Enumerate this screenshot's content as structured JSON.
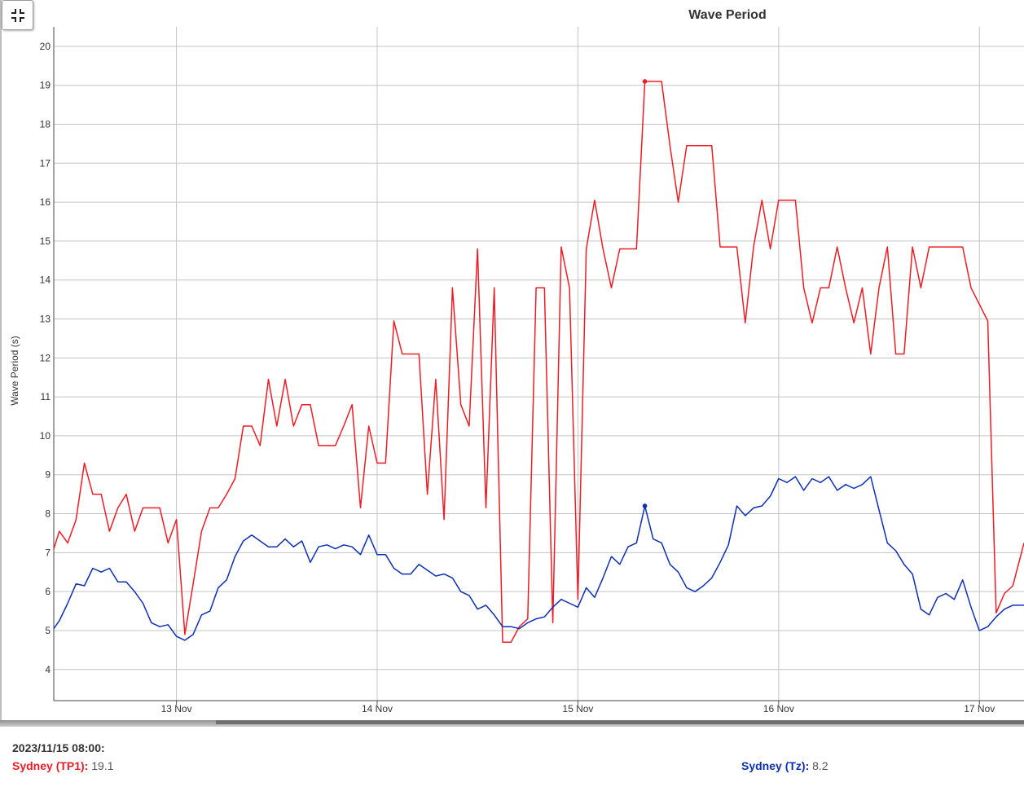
{
  "chart_data": {
    "type": "line",
    "title": "Wave Period",
    "ylabel": "Wave Period (s)",
    "xlabel": "",
    "ylim": [
      3.2,
      20.5
    ],
    "yticks": [
      4,
      5,
      6,
      7,
      8,
      9,
      10,
      11,
      12,
      13,
      14,
      15,
      16,
      17,
      18,
      19,
      20
    ],
    "xlim": [
      "2023-11-12 09:20",
      "2023-11-17 05:20"
    ],
    "xticks": [
      {
        "x": "2023-11-13 00:00",
        "label": "13 Nov"
      },
      {
        "x": "2023-11-14 00:00",
        "label": "14 Nov"
      },
      {
        "x": "2023-11-15 00:00",
        "label": "15 Nov"
      },
      {
        "x": "2023-11-16 00:00",
        "label": "16 Nov"
      },
      {
        "x": "2023-11-17 00:00",
        "label": "17 Nov"
      }
    ],
    "grid": true,
    "series": [
      {
        "name": "Sydney (TP1)",
        "color": "#ee1c25",
        "points": [
          [
            "2023-11-12 09:20",
            7.1
          ],
          [
            "2023-11-12 10:00",
            7.55
          ],
          [
            "2023-11-12 11:00",
            7.25
          ],
          [
            "2023-11-12 12:00",
            7.85
          ],
          [
            "2023-11-12 13:00",
            9.3
          ],
          [
            "2023-11-12 14:00",
            8.5
          ],
          [
            "2023-11-12 15:00",
            8.5
          ],
          [
            "2023-11-12 16:00",
            7.55
          ],
          [
            "2023-11-12 17:00",
            8.15
          ],
          [
            "2023-11-12 18:00",
            8.5
          ],
          [
            "2023-11-12 19:00",
            7.55
          ],
          [
            "2023-11-12 20:00",
            8.15
          ],
          [
            "2023-11-12 21:00",
            8.15
          ],
          [
            "2023-11-12 22:00",
            8.15
          ],
          [
            "2023-11-12 23:00",
            7.25
          ],
          [
            "2023-11-13 00:00",
            7.85
          ],
          [
            "2023-11-13 01:00",
            4.9
          ],
          [
            "2023-11-13 02:00",
            6.2
          ],
          [
            "2023-11-13 03:00",
            7.55
          ],
          [
            "2023-11-13 04:00",
            8.15
          ],
          [
            "2023-11-13 05:00",
            8.15
          ],
          [
            "2023-11-13 06:00",
            8.5
          ],
          [
            "2023-11-13 07:00",
            8.9
          ],
          [
            "2023-11-13 08:00",
            10.25
          ],
          [
            "2023-11-13 09:00",
            10.25
          ],
          [
            "2023-11-13 10:00",
            9.75
          ],
          [
            "2023-11-13 11:00",
            11.45
          ],
          [
            "2023-11-13 12:00",
            10.25
          ],
          [
            "2023-11-13 13:00",
            11.45
          ],
          [
            "2023-11-13 14:00",
            10.25
          ],
          [
            "2023-11-13 15:00",
            10.8
          ],
          [
            "2023-11-13 16:00",
            10.8
          ],
          [
            "2023-11-13 17:00",
            9.75
          ],
          [
            "2023-11-13 18:00",
            9.75
          ],
          [
            "2023-11-13 19:00",
            9.75
          ],
          [
            "2023-11-13 20:00",
            10.25
          ],
          [
            "2023-11-13 21:00",
            10.8
          ],
          [
            "2023-11-13 22:00",
            8.15
          ],
          [
            "2023-11-13 23:00",
            10.25
          ],
          [
            "2023-11-14 00:00",
            9.3
          ],
          [
            "2023-11-14 01:00",
            9.3
          ],
          [
            "2023-11-14 02:00",
            12.95
          ],
          [
            "2023-11-14 03:00",
            12.1
          ],
          [
            "2023-11-14 04:00",
            12.1
          ],
          [
            "2023-11-14 05:00",
            12.1
          ],
          [
            "2023-11-14 06:00",
            8.5
          ],
          [
            "2023-11-14 07:00",
            11.45
          ],
          [
            "2023-11-14 08:00",
            7.85
          ],
          [
            "2023-11-14 09:00",
            13.8
          ],
          [
            "2023-11-14 10:00",
            10.8
          ],
          [
            "2023-11-14 11:00",
            10.25
          ],
          [
            "2023-11-14 12:00",
            14.8
          ],
          [
            "2023-11-14 13:00",
            8.15
          ],
          [
            "2023-11-14 14:00",
            13.8
          ],
          [
            "2023-11-14 15:00",
            4.7
          ],
          [
            "2023-11-14 16:00",
            4.7
          ],
          [
            "2023-11-14 17:00",
            5.1
          ],
          [
            "2023-11-14 18:00",
            5.3
          ],
          [
            "2023-11-14 19:00",
            13.8
          ],
          [
            "2023-11-14 20:00",
            13.8
          ],
          [
            "2023-11-14 21:00",
            5.2
          ],
          [
            "2023-11-14 22:00",
            14.85
          ],
          [
            "2023-11-14 23:00",
            13.8
          ],
          [
            "2023-11-15 00:00",
            5.8
          ],
          [
            "2023-11-15 01:00",
            14.8
          ],
          [
            "2023-11-15 02:00",
            16.05
          ],
          [
            "2023-11-15 03:00",
            14.8
          ],
          [
            "2023-11-15 04:00",
            13.8
          ],
          [
            "2023-11-15 05:00",
            14.8
          ],
          [
            "2023-11-15 06:00",
            14.8
          ],
          [
            "2023-11-15 07:00",
            14.8
          ],
          [
            "2023-11-15 08:00",
            19.1
          ],
          [
            "2023-11-15 09:00",
            19.1
          ],
          [
            "2023-11-15 10:00",
            19.1
          ],
          [
            "2023-11-15 11:00",
            17.45
          ],
          [
            "2023-11-15 12:00",
            16.0
          ],
          [
            "2023-11-15 13:00",
            17.45
          ],
          [
            "2023-11-15 14:00",
            17.45
          ],
          [
            "2023-11-15 15:00",
            17.45
          ],
          [
            "2023-11-15 16:00",
            17.45
          ],
          [
            "2023-11-15 17:00",
            14.85
          ],
          [
            "2023-11-15 18:00",
            14.85
          ],
          [
            "2023-11-15 19:00",
            14.85
          ],
          [
            "2023-11-15 20:00",
            12.9
          ],
          [
            "2023-11-15 21:00",
            14.85
          ],
          [
            "2023-11-15 22:00",
            16.05
          ],
          [
            "2023-11-15 23:00",
            14.8
          ],
          [
            "2023-11-16 00:00",
            16.05
          ],
          [
            "2023-11-16 01:00",
            16.05
          ],
          [
            "2023-11-16 02:00",
            16.05
          ],
          [
            "2023-11-16 03:00",
            13.8
          ],
          [
            "2023-11-16 04:00",
            12.9
          ],
          [
            "2023-11-16 05:00",
            13.8
          ],
          [
            "2023-11-16 06:00",
            13.8
          ],
          [
            "2023-11-16 07:00",
            14.85
          ],
          [
            "2023-11-16 08:00",
            13.8
          ],
          [
            "2023-11-16 09:00",
            12.9
          ],
          [
            "2023-11-16 10:00",
            13.8
          ],
          [
            "2023-11-16 11:00",
            12.1
          ],
          [
            "2023-11-16 12:00",
            13.8
          ],
          [
            "2023-11-16 13:00",
            14.85
          ],
          [
            "2023-11-16 14:00",
            12.1
          ],
          [
            "2023-11-16 15:00",
            12.1
          ],
          [
            "2023-11-16 16:00",
            14.85
          ],
          [
            "2023-11-16 17:00",
            13.8
          ],
          [
            "2023-11-16 18:00",
            14.85
          ],
          [
            "2023-11-16 19:00",
            14.85
          ],
          [
            "2023-11-16 20:00",
            14.85
          ],
          [
            "2023-11-16 21:00",
            14.85
          ],
          [
            "2023-11-16 22:00",
            14.85
          ],
          [
            "2023-11-16 23:00",
            13.8
          ],
          [
            "2023-11-17 01:00",
            12.95
          ],
          [
            "2023-11-17 02:00",
            5.45
          ],
          [
            "2023-11-17 03:00",
            5.95
          ],
          [
            "2023-11-17 04:00",
            6.15
          ],
          [
            "2023-11-17 05:20",
            7.25
          ]
        ]
      },
      {
        "name": "Sydney (Tz)",
        "color": "#0d2fb4",
        "points": [
          [
            "2023-11-12 09:20",
            5.05
          ],
          [
            "2023-11-12 10:00",
            5.25
          ],
          [
            "2023-11-12 11:00",
            5.7
          ],
          [
            "2023-11-12 12:00",
            6.2
          ],
          [
            "2023-11-12 13:00",
            6.15
          ],
          [
            "2023-11-12 14:00",
            6.6
          ],
          [
            "2023-11-12 15:00",
            6.5
          ],
          [
            "2023-11-12 16:00",
            6.6
          ],
          [
            "2023-11-12 17:00",
            6.25
          ],
          [
            "2023-11-12 18:00",
            6.25
          ],
          [
            "2023-11-12 19:00",
            6.0
          ],
          [
            "2023-11-12 20:00",
            5.7
          ],
          [
            "2023-11-12 21:00",
            5.2
          ],
          [
            "2023-11-12 22:00",
            5.1
          ],
          [
            "2023-11-12 23:00",
            5.15
          ],
          [
            "2023-11-13 00:00",
            4.85
          ],
          [
            "2023-11-13 01:00",
            4.75
          ],
          [
            "2023-11-13 02:00",
            4.9
          ],
          [
            "2023-11-13 03:00",
            5.4
          ],
          [
            "2023-11-13 04:00",
            5.5
          ],
          [
            "2023-11-13 05:00",
            6.1
          ],
          [
            "2023-11-13 06:00",
            6.3
          ],
          [
            "2023-11-13 07:00",
            6.9
          ],
          [
            "2023-11-13 08:00",
            7.3
          ],
          [
            "2023-11-13 09:00",
            7.45
          ],
          [
            "2023-11-13 10:00",
            7.3
          ],
          [
            "2023-11-13 11:00",
            7.15
          ],
          [
            "2023-11-13 12:00",
            7.15
          ],
          [
            "2023-11-13 13:00",
            7.35
          ],
          [
            "2023-11-13 14:00",
            7.15
          ],
          [
            "2023-11-13 15:00",
            7.3
          ],
          [
            "2023-11-13 16:00",
            6.75
          ],
          [
            "2023-11-13 17:00",
            7.15
          ],
          [
            "2023-11-13 18:00",
            7.2
          ],
          [
            "2023-11-13 19:00",
            7.1
          ],
          [
            "2023-11-13 20:00",
            7.2
          ],
          [
            "2023-11-13 21:00",
            7.15
          ],
          [
            "2023-11-13 22:00",
            6.95
          ],
          [
            "2023-11-13 23:00",
            7.45
          ],
          [
            "2023-11-14 00:00",
            6.95
          ],
          [
            "2023-11-14 01:00",
            6.95
          ],
          [
            "2023-11-14 02:00",
            6.6
          ],
          [
            "2023-11-14 03:00",
            6.45
          ],
          [
            "2023-11-14 04:00",
            6.45
          ],
          [
            "2023-11-14 05:00",
            6.7
          ],
          [
            "2023-11-14 06:00",
            6.55
          ],
          [
            "2023-11-14 07:00",
            6.4
          ],
          [
            "2023-11-14 08:00",
            6.45
          ],
          [
            "2023-11-14 09:00",
            6.35
          ],
          [
            "2023-11-14 10:00",
            6.0
          ],
          [
            "2023-11-14 11:00",
            5.9
          ],
          [
            "2023-11-14 12:00",
            5.55
          ],
          [
            "2023-11-14 13:00",
            5.65
          ],
          [
            "2023-11-14 14:00",
            5.4
          ],
          [
            "2023-11-14 15:00",
            5.1
          ],
          [
            "2023-11-14 16:00",
            5.1
          ],
          [
            "2023-11-14 17:00",
            5.05
          ],
          [
            "2023-11-14 18:00",
            5.2
          ],
          [
            "2023-11-14 19:00",
            5.3
          ],
          [
            "2023-11-14 20:00",
            5.35
          ],
          [
            "2023-11-14 21:00",
            5.6
          ],
          [
            "2023-11-14 22:00",
            5.8
          ],
          [
            "2023-11-14 23:00",
            5.7
          ],
          [
            "2023-11-15 00:00",
            5.6
          ],
          [
            "2023-11-15 01:00",
            6.1
          ],
          [
            "2023-11-15 02:00",
            5.85
          ],
          [
            "2023-11-15 03:00",
            6.35
          ],
          [
            "2023-11-15 04:00",
            6.9
          ],
          [
            "2023-11-15 05:00",
            6.7
          ],
          [
            "2023-11-15 06:00",
            7.15
          ],
          [
            "2023-11-15 07:00",
            7.25
          ],
          [
            "2023-11-15 08:00",
            8.2
          ],
          [
            "2023-11-15 09:00",
            7.35
          ],
          [
            "2023-11-15 10:00",
            7.25
          ],
          [
            "2023-11-15 11:00",
            6.7
          ],
          [
            "2023-11-15 12:00",
            6.5
          ],
          [
            "2023-11-15 13:00",
            6.1
          ],
          [
            "2023-11-15 14:00",
            6.0
          ],
          [
            "2023-11-15 15:00",
            6.15
          ],
          [
            "2023-11-15 16:00",
            6.35
          ],
          [
            "2023-11-15 17:00",
            6.75
          ],
          [
            "2023-11-15 18:00",
            7.2
          ],
          [
            "2023-11-15 19:00",
            8.2
          ],
          [
            "2023-11-15 20:00",
            7.95
          ],
          [
            "2023-11-15 21:00",
            8.15
          ],
          [
            "2023-11-15 22:00",
            8.2
          ],
          [
            "2023-11-15 23:00",
            8.45
          ],
          [
            "2023-11-16 00:00",
            8.9
          ],
          [
            "2023-11-16 01:00",
            8.8
          ],
          [
            "2023-11-16 02:00",
            8.95
          ],
          [
            "2023-11-16 03:00",
            8.6
          ],
          [
            "2023-11-16 04:00",
            8.9
          ],
          [
            "2023-11-16 05:00",
            8.8
          ],
          [
            "2023-11-16 06:00",
            8.95
          ],
          [
            "2023-11-16 07:00",
            8.6
          ],
          [
            "2023-11-16 08:00",
            8.75
          ],
          [
            "2023-11-16 09:00",
            8.65
          ],
          [
            "2023-11-16 10:00",
            8.75
          ],
          [
            "2023-11-16 11:00",
            8.95
          ],
          [
            "2023-11-16 12:00",
            8.1
          ],
          [
            "2023-11-16 13:00",
            7.25
          ],
          [
            "2023-11-16 14:00",
            7.05
          ],
          [
            "2023-11-16 15:00",
            6.7
          ],
          [
            "2023-11-16 16:00",
            6.45
          ],
          [
            "2023-11-16 17:00",
            5.55
          ],
          [
            "2023-11-16 18:00",
            5.4
          ],
          [
            "2023-11-16 19:00",
            5.85
          ],
          [
            "2023-11-16 20:00",
            5.95
          ],
          [
            "2023-11-16 21:00",
            5.8
          ],
          [
            "2023-11-16 22:00",
            6.3
          ],
          [
            "2023-11-16 23:00",
            5.6
          ],
          [
            "2023-11-17 00:00",
            5.0
          ],
          [
            "2023-11-17 01:00",
            5.1
          ],
          [
            "2023-11-17 02:00",
            5.35
          ],
          [
            "2023-11-17 03:00",
            5.55
          ],
          [
            "2023-11-17 04:00",
            5.65
          ],
          [
            "2023-11-17 05:20",
            5.65
          ]
        ]
      }
    ],
    "markers": [
      {
        "series": "Sydney (TP1)",
        "x": "2023-11-15 08:00",
        "y": 19.1
      },
      {
        "series": "Sydney (Tz)",
        "x": "2023-11-15 08:00",
        "y": 8.2
      }
    ]
  },
  "readout": {
    "time": "2023/11/15 08:00:",
    "items": [
      {
        "label": "Sydney (TP1)",
        "value": "19.1",
        "color": "#ee1c25"
      },
      {
        "label": "Sydney (Tz)",
        "value": "8.2",
        "color": "#0d2fb4"
      }
    ]
  },
  "toolbar": {
    "icon": "collapse-icon"
  }
}
